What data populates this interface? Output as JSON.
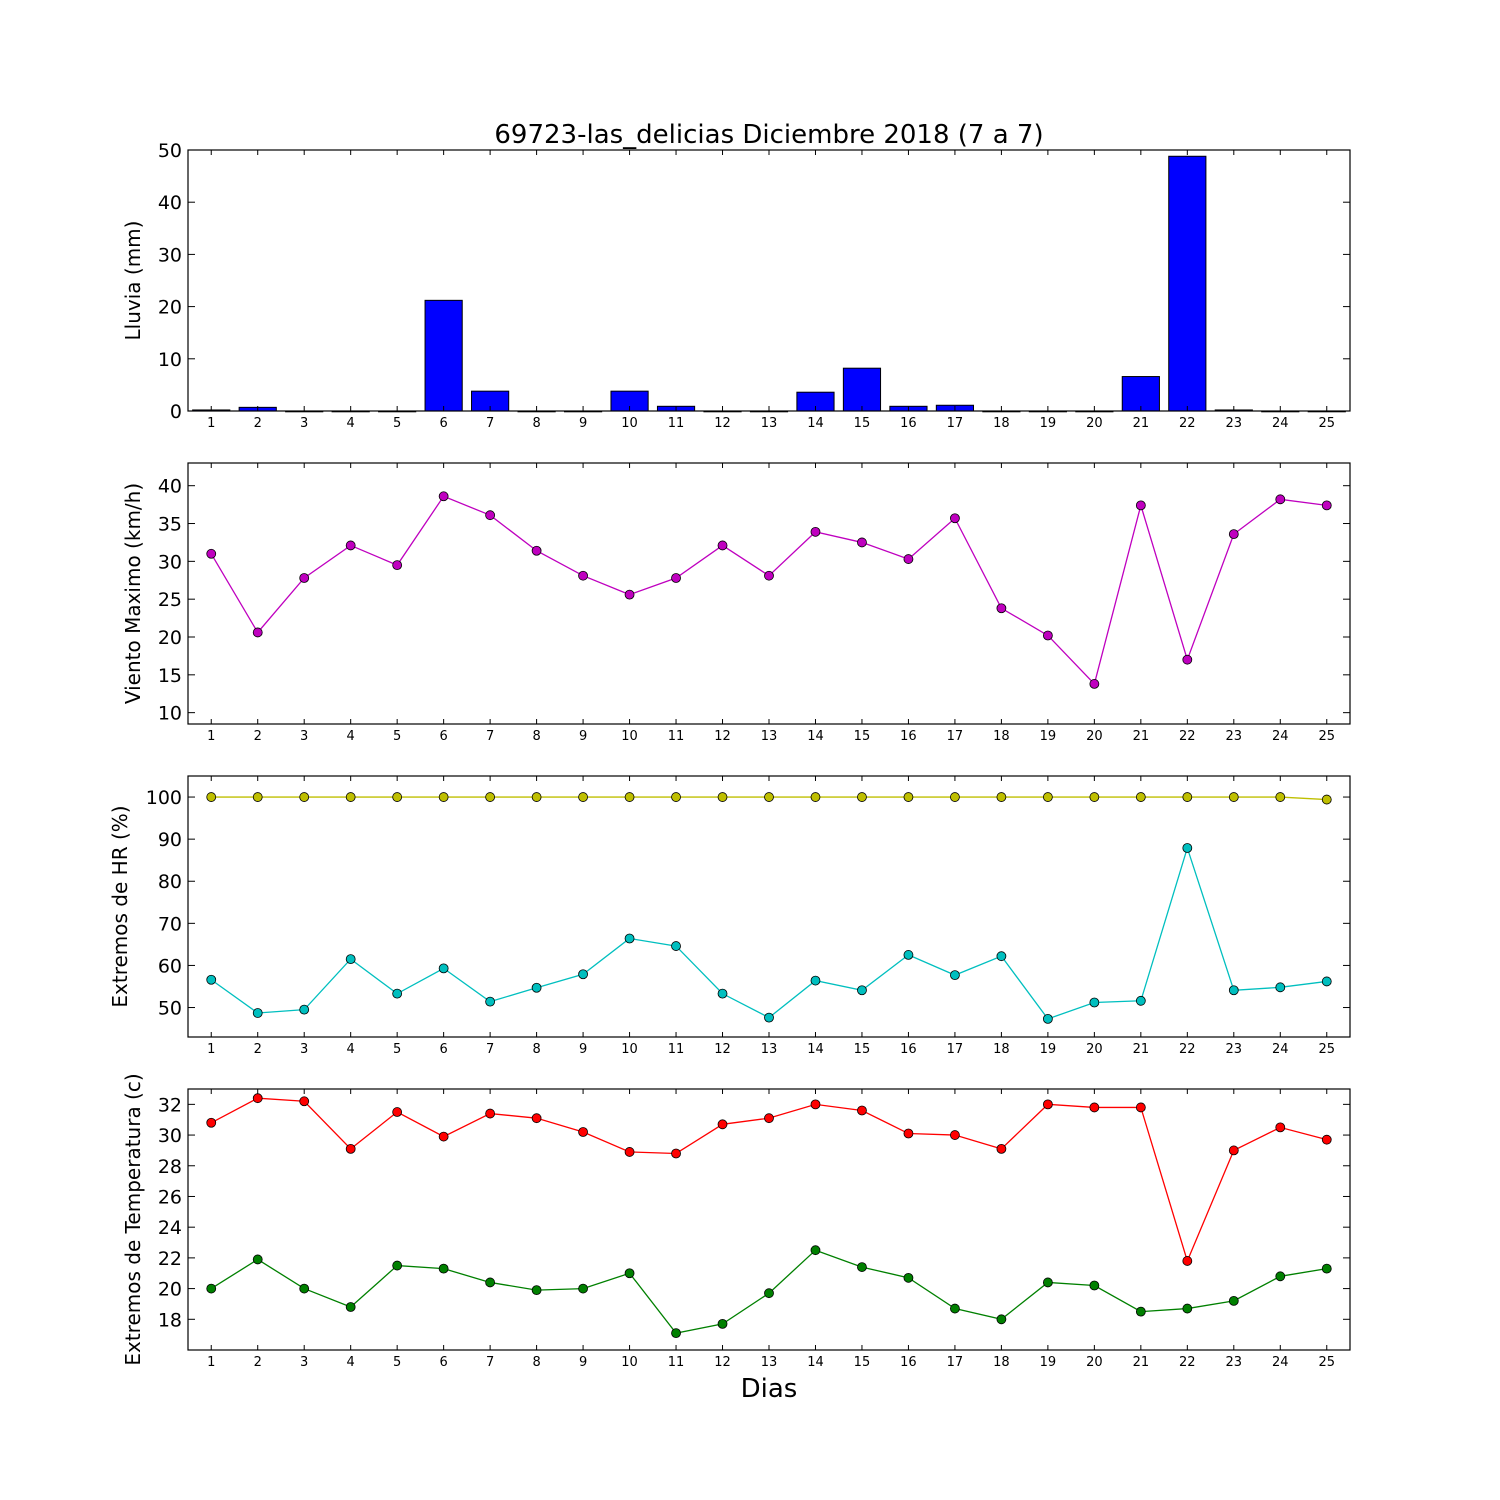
{
  "chart_data": [
    {
      "type": "bar",
      "title": "69723-las_delicias Diciembre 2018  (7 a 7)",
      "ylabel": "Lluvia (mm)",
      "xlabel": "",
      "categories": [
        "1",
        "2",
        "3",
        "4",
        "5",
        "6",
        "7",
        "8",
        "9",
        "10",
        "11",
        "12",
        "13",
        "14",
        "15",
        "16",
        "17",
        "18",
        "19",
        "20",
        "21",
        "22",
        "23",
        "24",
        "25"
      ],
      "xlim": [
        0.5,
        25.5
      ],
      "ylim": [
        0,
        50
      ],
      "yticks": [
        0,
        10,
        20,
        30,
        40,
        50
      ],
      "series": [
        {
          "color": "#0000ff",
          "values": [
            0.2,
            0.7,
            0,
            0,
            0,
            21.2,
            3.8,
            0,
            0,
            3.8,
            0.9,
            0,
            0,
            3.6,
            8.2,
            0.9,
            1.1,
            0,
            0,
            0,
            6.6,
            48.8,
            0.2,
            0,
            0
          ]
        }
      ]
    },
    {
      "type": "line",
      "ylabel": "Viento Maximo (km/h)",
      "xlabel": "",
      "categories": [
        "1",
        "2",
        "3",
        "4",
        "5",
        "6",
        "7",
        "8",
        "9",
        "10",
        "11",
        "12",
        "13",
        "14",
        "15",
        "16",
        "17",
        "18",
        "19",
        "20",
        "21",
        "22",
        "23",
        "24",
        "25"
      ],
      "xlim": [
        0.5,
        25.5
      ],
      "ylim": [
        8.5,
        43
      ],
      "yticks": [
        10,
        15,
        20,
        25,
        30,
        35,
        40
      ],
      "series": [
        {
          "color": "#bf00bf",
          "values": [
            31.0,
            20.6,
            27.8,
            32.1,
            29.5,
            38.6,
            36.1,
            31.4,
            28.1,
            25.6,
            27.8,
            32.1,
            28.1,
            33.9,
            32.5,
            30.3,
            35.7,
            23.8,
            20.2,
            13.8,
            37.4,
            17.0,
            33.6,
            38.2,
            37.4
          ]
        }
      ]
    },
    {
      "type": "line",
      "ylabel": "Extremos de HR (%)",
      "xlabel": "",
      "categories": [
        "1",
        "2",
        "3",
        "4",
        "5",
        "6",
        "7",
        "8",
        "9",
        "10",
        "11",
        "12",
        "13",
        "14",
        "15",
        "16",
        "17",
        "18",
        "19",
        "20",
        "21",
        "22",
        "23",
        "24",
        "25"
      ],
      "xlim": [
        0.5,
        25.5
      ],
      "ylim": [
        43,
        105
      ],
      "yticks": [
        50,
        60,
        70,
        80,
        90,
        100
      ],
      "series": [
        {
          "color": "#bfbf00",
          "values": [
            100,
            100,
            100,
            100,
            100,
            100,
            100,
            100,
            100,
            100,
            100,
            100,
            100,
            100,
            100,
            100,
            100,
            100,
            100,
            100,
            100,
            100,
            100,
            100,
            99.4
          ]
        },
        {
          "color": "#00bfbf",
          "values": [
            56.6,
            48.7,
            49.5,
            61.5,
            53.3,
            59.3,
            51.4,
            54.7,
            57.9,
            66.4,
            64.6,
            53.3,
            47.6,
            56.4,
            54.1,
            62.5,
            57.7,
            62.2,
            47.3,
            51.2,
            51.6,
            87.9,
            54.1,
            54.8,
            56.2
          ]
        }
      ]
    },
    {
      "type": "line",
      "ylabel": "Extremos de Temperatura (c)",
      "xlabel": "Dias",
      "categories": [
        "1",
        "2",
        "3",
        "4",
        "5",
        "6",
        "7",
        "8",
        "9",
        "10",
        "11",
        "12",
        "13",
        "14",
        "15",
        "16",
        "17",
        "18",
        "19",
        "20",
        "21",
        "22",
        "23",
        "24",
        "25"
      ],
      "xlim": [
        0.5,
        25.5
      ],
      "ylim": [
        16,
        33
      ],
      "yticks": [
        18,
        20,
        22,
        24,
        26,
        28,
        30,
        32
      ],
      "series": [
        {
          "color": "#ff0000",
          "values": [
            30.8,
            32.4,
            32.2,
            29.1,
            31.5,
            29.9,
            31.4,
            31.1,
            30.2,
            28.9,
            28.8,
            30.7,
            31.1,
            32.0,
            31.6,
            30.1,
            30.0,
            29.1,
            32.0,
            31.8,
            31.8,
            21.8,
            29.0,
            30.5,
            29.7
          ]
        },
        {
          "color": "#008000",
          "values": [
            20.0,
            21.9,
            20.0,
            18.8,
            21.5,
            21.3,
            20.4,
            19.9,
            20.0,
            21.0,
            17.1,
            17.7,
            19.7,
            22.5,
            21.4,
            20.7,
            18.7,
            18.0,
            20.4,
            20.2,
            18.5,
            18.7,
            19.2,
            20.8,
            21.3
          ]
        }
      ]
    }
  ]
}
